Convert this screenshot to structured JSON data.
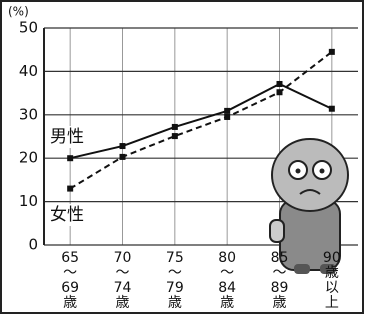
{
  "chart_data": {
    "type": "line",
    "y_label": "(%)",
    "categories": [
      "65\n〜\n69\n歳",
      "70\n〜\n74\n歳",
      "75\n〜\n79\n歳",
      "80\n〜\n84\n歳",
      "85\n〜\n89\n歳",
      "90\n歳\n以\n上"
    ],
    "series": [
      {
        "name": "男性",
        "color": "#111111",
        "dash": false,
        "values": [
          20,
          22.8,
          27.2,
          30.9,
          37.1,
          31.4
        ]
      },
      {
        "name": "女性",
        "color": "#111111",
        "dash": true,
        "values": [
          13,
          20.3,
          25.1,
          29.5,
          35.2,
          44.5
        ]
      }
    ],
    "ylim": [
      0,
      50
    ],
    "yticks": [
      0,
      10,
      20,
      30,
      40,
      50
    ],
    "grid": true
  }
}
